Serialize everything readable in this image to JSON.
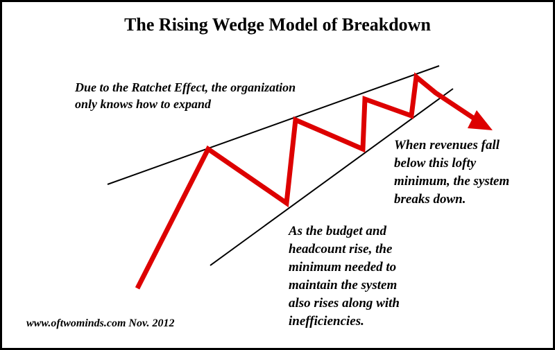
{
  "title": "The Rising Wedge Model of Breakdown",
  "notes": {
    "ratchet": [
      "Due to the Ratchet Effect, the organization",
      "only knows how to expand"
    ],
    "revenue": [
      "When revenues fall",
      "below this lofty",
      "minimum, the system",
      "breaks down."
    ],
    "budget": [
      "As the budget and",
      "headcount rise, the",
      "minimum needed to",
      "maintain the system",
      "also rises along with",
      "inefficiencies."
    ]
  },
  "footer": "www.oftwominds.com  Nov. 2012",
  "colors": {
    "zigzag": "#dd0000",
    "lines": "#000000",
    "background": "#ffffff",
    "border": "#000000"
  }
}
